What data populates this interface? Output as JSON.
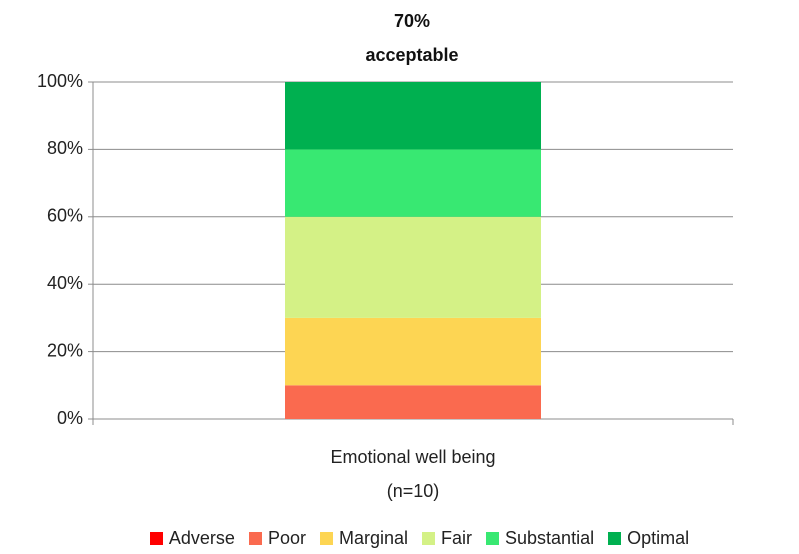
{
  "chart_data": {
    "type": "stacked_bar",
    "annotation": "70%\nacceptable",
    "categories": [
      "Emotional well being\n(n=10)"
    ],
    "series": [
      {
        "name": "Adverse",
        "color": "#ff0000",
        "values": [
          0
        ]
      },
      {
        "name": "Poor",
        "color": "#fa6a4f",
        "values": [
          10
        ]
      },
      {
        "name": "Marginal",
        "color": "#fdd553",
        "values": [
          20
        ]
      },
      {
        "name": "Fair",
        "color": "#d4f186",
        "values": [
          30
        ]
      },
      {
        "name": "Substantial",
        "color": "#38e872",
        "values": [
          20
        ]
      },
      {
        "name": "Optimal",
        "color": "#00b050",
        "values": [
          20
        ]
      }
    ],
    "ylim": [
      0,
      100
    ],
    "yticks": [
      {
        "value": 0,
        "label": "0%"
      },
      {
        "value": 20,
        "label": "20%"
      },
      {
        "value": 40,
        "label": "40%"
      },
      {
        "value": 60,
        "label": "60%"
      },
      {
        "value": 80,
        "label": "80%"
      },
      {
        "value": 100,
        "label": "100%"
      }
    ],
    "grid": true,
    "legend": "bottom"
  }
}
